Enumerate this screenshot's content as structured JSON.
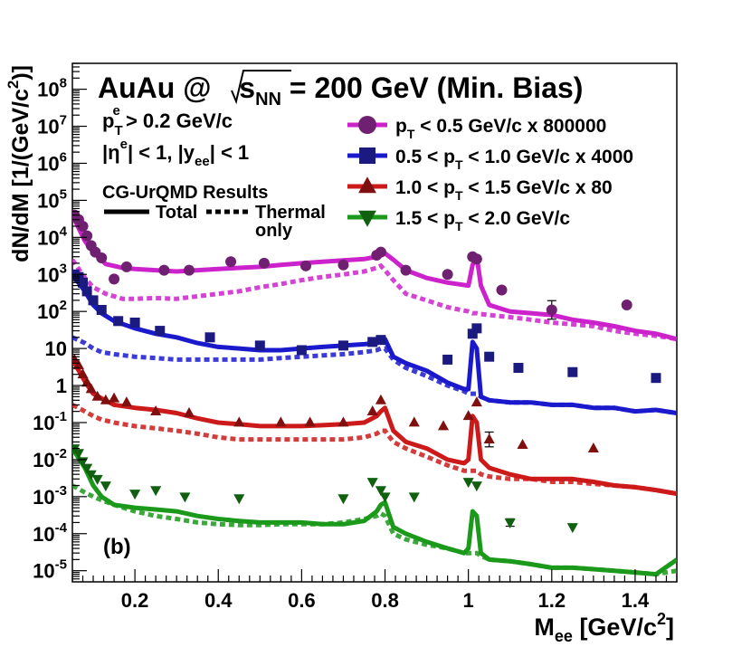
{
  "chart_data": {
    "type": "line",
    "title": "AuAu @ √s_NN = 200 GeV (Min. Bias)",
    "title_parts": {
      "lead": "AuAu @ ",
      "s": "s",
      "sub": "NN",
      "tail": " = 200 GeV (Min. Bias)"
    },
    "xlabel": "M_ee [GeV/c²]",
    "xlabel_parts": {
      "m": "M",
      "sub": "ee",
      "unit": " [GeV/c",
      "sup": "2",
      "close": "]"
    },
    "ylabel": "dN/dM [1/(GeV/c²)]",
    "ylabel_parts": {
      "main": "dN/dM [1/(GeV/c",
      "sup": "2",
      "close": ")]"
    },
    "xlim": [
      0.05,
      1.5
    ],
    "ylim": [
      5e-06,
      500000000.0
    ],
    "yscale": "log",
    "x_ticks": [
      0.2,
      0.4,
      0.6,
      0.8,
      1,
      1.2,
      1.4
    ],
    "x_tick_labels": [
      "0.2",
      "0.4",
      "0.6",
      "0.8",
      "1",
      "1.2",
      "1.4"
    ],
    "y_ticks": [
      {
        "exp": -5,
        "base": "10",
        "sup": "-5"
      },
      {
        "exp": -4,
        "base": "10",
        "sup": "-4"
      },
      {
        "exp": -3,
        "base": "10",
        "sup": "-3"
      },
      {
        "exp": -2,
        "base": "10",
        "sup": "-2"
      },
      {
        "exp": -1,
        "base": "10",
        "sup": "-1"
      },
      {
        "exp": 0,
        "text": "1"
      },
      {
        "exp": 1,
        "text": "10"
      },
      {
        "exp": 2,
        "base": "10",
        "sup": "2"
      },
      {
        "exp": 3,
        "base": "10",
        "sup": "3"
      },
      {
        "exp": 4,
        "base": "10",
        "sup": "4"
      },
      {
        "exp": 5,
        "base": "10",
        "sup": "5"
      },
      {
        "exp": 6,
        "base": "10",
        "sup": "6"
      },
      {
        "exp": 7,
        "base": "10",
        "sup": "7"
      },
      {
        "exp": 8,
        "base": "10",
        "sup": "8"
      }
    ],
    "annotations": {
      "cut_pt": {
        "main": "p",
        "sub": "T",
        "sup": "e",
        "tail": " > 0.2 GeV/c"
      },
      "cut_eta": {
        "a": "|η",
        "sup": "e",
        "b": "| < 1, |y",
        "sub": "ee",
        "c": "| < 1"
      },
      "model": "CG-UrQMD Results",
      "total_label": "Total",
      "thermal_label": "Thermal",
      "thermal_label2": "only",
      "panel": "(b)"
    },
    "series": [
      {
        "name": "p_T < 0.5 GeV/c  x 800000",
        "legend": {
          "pre": "",
          "p": "p",
          "sub": "T",
          "post": " < 0.5 GeV/c  x 800000"
        },
        "color": "#cc22cc",
        "data_color": "#702070",
        "marker": "circle",
        "x": [
          0.05,
          0.08,
          0.1,
          0.13,
          0.17,
          0.2,
          0.25,
          0.3,
          0.4,
          0.45,
          0.5,
          0.55,
          0.6,
          0.65,
          0.7,
          0.75,
          0.78,
          0.79,
          0.8,
          0.82,
          0.85,
          0.9,
          0.95,
          1.0,
          1.01,
          1.02,
          1.03,
          1.05,
          1.1,
          1.15,
          1.2,
          1.25,
          1.3,
          1.35,
          1.4,
          1.45,
          1.5
        ],
        "total": [
          40000,
          8000,
          4000,
          1900,
          1500,
          1400,
          1300,
          1200,
          1400,
          1500,
          1600,
          1800,
          2000,
          2200,
          2400,
          2600,
          3000,
          3500,
          3700,
          2500,
          1300,
          800,
          600,
          500,
          1800,
          3000,
          500,
          150,
          100,
          90,
          80,
          60,
          50,
          40,
          30,
          25,
          18
        ],
        "thermal": [
          2500,
          800,
          450,
          300,
          220,
          220,
          230,
          220,
          300,
          350,
          450,
          550,
          700,
          850,
          1000,
          1200,
          1500,
          1700,
          1300,
          700,
          300,
          200,
          130,
          100,
          90,
          90,
          85,
          80,
          70,
          60,
          50,
          45,
          40,
          30,
          25,
          22,
          18
        ],
        "points": [
          {
            "x": 0.055,
            "y": 40000
          },
          {
            "x": 0.065,
            "y": 30000
          },
          {
            "x": 0.075,
            "y": 20000
          },
          {
            "x": 0.085,
            "y": 11000
          },
          {
            "x": 0.095,
            "y": 6000
          },
          {
            "x": 0.105,
            "y": 4000
          },
          {
            "x": 0.12,
            "y": 2800
          },
          {
            "x": 0.15,
            "y": 750
          },
          {
            "x": 0.18,
            "y": 1600
          },
          {
            "x": 0.27,
            "y": 1300
          },
          {
            "x": 0.33,
            "y": 1300
          },
          {
            "x": 0.43,
            "y": 2200
          },
          {
            "x": 0.51,
            "y": 2000
          },
          {
            "x": 0.61,
            "y": 1700
          },
          {
            "x": 0.7,
            "y": 1800
          },
          {
            "x": 0.78,
            "y": 3300
          },
          {
            "x": 0.79,
            "y": 4000
          },
          {
            "x": 0.85,
            "y": 1300
          },
          {
            "x": 0.95,
            "y": 1000
          },
          {
            "x": 1.01,
            "y": 3000
          },
          {
            "x": 1.02,
            "y": 2600
          },
          {
            "x": 1.08,
            "y": 380
          },
          {
            "x": 1.2,
            "y": 110,
            "err": 0.25
          },
          {
            "x": 1.38,
            "y": 150
          }
        ]
      },
      {
        "name": "0.5 < p_T < 1.0 GeV/c  x 4000",
        "legend": {
          "pre": "0.5 < ",
          "p": "p",
          "sub": "T",
          "post": " < 1.0 GeV/c  x 4000"
        },
        "color": "#1a1acc",
        "data_color": "#1a1a80",
        "marker": "square",
        "x": [
          0.05,
          0.08,
          0.1,
          0.12,
          0.15,
          0.2,
          0.25,
          0.3,
          0.35,
          0.4,
          0.45,
          0.5,
          0.55,
          0.6,
          0.65,
          0.7,
          0.75,
          0.78,
          0.79,
          0.8,
          0.82,
          0.85,
          0.9,
          0.95,
          0.99,
          1.0,
          1.01,
          1.02,
          1.03,
          1.05,
          1.1,
          1.15,
          1.2,
          1.25,
          1.3,
          1.35,
          1.4,
          1.45,
          1.5
        ],
        "total": [
          1000,
          350,
          150,
          90,
          55,
          35,
          25,
          20,
          14,
          11,
          10,
          9,
          9,
          10,
          11,
          12,
          13,
          14,
          16,
          18,
          6,
          4,
          2.5,
          1.2,
          0.8,
          0.8,
          15,
          10,
          0.5,
          0.4,
          0.35,
          0.35,
          0.3,
          0.3,
          0.25,
          0.25,
          0.2,
          0.22,
          0.18
        ],
        "thermal": [
          20,
          14,
          10,
          8,
          7,
          6,
          5.5,
          5,
          5,
          5,
          5,
          5,
          5.5,
          6,
          6.5,
          7,
          8,
          9,
          10,
          10,
          5,
          3,
          1.8,
          1,
          0.7,
          0.6,
          0.6,
          0.6,
          0.5,
          0.4,
          0.35,
          0.35,
          0.3,
          0.3,
          0.25,
          0.25,
          0.2,
          0.22,
          0.18
        ],
        "points": [
          {
            "x": 0.055,
            "y": 1000
          },
          {
            "x": 0.065,
            "y": 850
          },
          {
            "x": 0.075,
            "y": 600
          },
          {
            "x": 0.085,
            "y": 350
          },
          {
            "x": 0.1,
            "y": 200
          },
          {
            "x": 0.12,
            "y": 110
          },
          {
            "x": 0.16,
            "y": 55
          },
          {
            "x": 0.2,
            "y": 50
          },
          {
            "x": 0.26,
            "y": 30
          },
          {
            "x": 0.38,
            "y": 20
          },
          {
            "x": 0.5,
            "y": 12
          },
          {
            "x": 0.6,
            "y": 9
          },
          {
            "x": 0.7,
            "y": 12
          },
          {
            "x": 0.77,
            "y": 15
          },
          {
            "x": 0.79,
            "y": 17
          },
          {
            "x": 0.95,
            "y": 5
          },
          {
            "x": 1.01,
            "y": 25
          },
          {
            "x": 1.02,
            "y": 35
          },
          {
            "x": 1.05,
            "y": 6
          },
          {
            "x": 1.12,
            "y": 3
          },
          {
            "x": 1.25,
            "y": 2.3
          },
          {
            "x": 1.45,
            "y": 1.6
          }
        ]
      },
      {
        "name": "1.0 < p_T < 1.5 GeV/c  x 80",
        "legend": {
          "pre": "1.0 < ",
          "p": "p",
          "sub": "T",
          "post": " < 1.5 GeV/c  x 80"
        },
        "color": "#cc1a1a",
        "data_color": "#801010",
        "marker": "triangle-up",
        "x": [
          0.05,
          0.08,
          0.1,
          0.12,
          0.15,
          0.2,
          0.25,
          0.3,
          0.35,
          0.4,
          0.45,
          0.5,
          0.55,
          0.6,
          0.65,
          0.7,
          0.75,
          0.78,
          0.79,
          0.8,
          0.82,
          0.85,
          0.9,
          0.95,
          0.99,
          1.0,
          1.01,
          1.02,
          1.03,
          1.05,
          1.1,
          1.15,
          1.2,
          1.25,
          1.3,
          1.35,
          1.4,
          1.45,
          1.5
        ],
        "total": [
          5,
          1.3,
          0.6,
          0.45,
          0.3,
          0.25,
          0.22,
          0.18,
          0.13,
          0.1,
          0.09,
          0.08,
          0.08,
          0.08,
          0.085,
          0.09,
          0.1,
          0.15,
          0.2,
          0.25,
          0.06,
          0.03,
          0.02,
          0.01,
          0.008,
          0.01,
          0.15,
          0.1,
          0.01,
          0.006,
          0.004,
          0.003,
          0.003,
          0.003,
          0.0025,
          0.002,
          0.0018,
          0.0015,
          0.0012
        ],
        "thermal": [
          0.3,
          0.2,
          0.15,
          0.12,
          0.1,
          0.08,
          0.07,
          0.06,
          0.05,
          0.04,
          0.035,
          0.035,
          0.035,
          0.035,
          0.035,
          0.035,
          0.04,
          0.05,
          0.06,
          0.06,
          0.03,
          0.02,
          0.012,
          0.007,
          0.005,
          0.005,
          0.005,
          0.005,
          0.004,
          0.0035,
          0.003,
          0.003,
          0.0025,
          0.0025,
          0.0022,
          0.002,
          0.0018,
          0.0015,
          0.0012
        ],
        "points": [
          {
            "x": 0.055,
            "y": 5
          },
          {
            "x": 0.065,
            "y": 3.5
          },
          {
            "x": 0.075,
            "y": 2
          },
          {
            "x": 0.085,
            "y": 1.2
          },
          {
            "x": 0.095,
            "y": 0.8
          },
          {
            "x": 0.11,
            "y": 0.5
          },
          {
            "x": 0.13,
            "y": 0.4
          },
          {
            "x": 0.15,
            "y": 0.45
          },
          {
            "x": 0.18,
            "y": 0.35
          },
          {
            "x": 0.25,
            "y": 0.2
          },
          {
            "x": 0.33,
            "y": 0.18
          },
          {
            "x": 0.45,
            "y": 0.1
          },
          {
            "x": 0.55,
            "y": 0.1
          },
          {
            "x": 0.62,
            "y": 0.1
          },
          {
            "x": 0.7,
            "y": 0.1
          },
          {
            "x": 0.77,
            "y": 0.2
          },
          {
            "x": 0.79,
            "y": 0.4
          },
          {
            "x": 0.87,
            "y": 0.1
          },
          {
            "x": 0.94,
            "y": 0.08
          },
          {
            "x": 1.0,
            "y": 0.15
          },
          {
            "x": 1.02,
            "y": 0.35
          },
          {
            "x": 1.05,
            "y": 0.035,
            "err": 0.2
          },
          {
            "x": 1.13,
            "y": 0.025
          },
          {
            "x": 1.3,
            "y": 0.02
          }
        ]
      },
      {
        "name": "1.5 < p_T < 2.0 GeV/c",
        "legend": {
          "pre": "1.5 < ",
          "p": "p",
          "sub": "T",
          "post": " < 2.0 GeV/c"
        },
        "color": "#1a991a",
        "data_color": "#106010",
        "marker": "triangle-down",
        "x": [
          0.05,
          0.08,
          0.1,
          0.12,
          0.15,
          0.2,
          0.25,
          0.3,
          0.35,
          0.4,
          0.45,
          0.5,
          0.55,
          0.6,
          0.65,
          0.7,
          0.75,
          0.78,
          0.79,
          0.8,
          0.82,
          0.85,
          0.9,
          0.95,
          0.99,
          1.0,
          1.01,
          1.02,
          1.03,
          1.05,
          1.1,
          1.15,
          1.2,
          1.25,
          1.3,
          1.35,
          1.4,
          1.45,
          1.5
        ],
        "total": [
          0.02,
          0.006,
          0.002,
          0.001,
          0.0006,
          0.0005,
          0.00045,
          0.0004,
          0.0003,
          0.00025,
          0.00022,
          0.0002,
          0.0002,
          0.0002,
          0.00018,
          0.00018,
          0.00022,
          0.0004,
          0.0006,
          0.0007,
          0.00015,
          0.0001,
          6e-05,
          4e-05,
          3e-05,
          4e-05,
          0.0004,
          0.0003,
          3e-05,
          2e-05,
          1.8e-05,
          1.5e-05,
          1.2e-05,
          1.2e-05,
          1.1e-05,
          1e-05,
          9e-06,
          8e-06,
          2e-05
        ],
        "thermal": [
          0.002,
          0.0013,
          0.001,
          0.0008,
          0.0006,
          0.0004,
          0.0003,
          0.00025,
          0.0002,
          0.00018,
          0.00017,
          0.00017,
          0.00018,
          0.00018,
          0.00018,
          0.0002,
          0.00025,
          0.0003,
          0.00035,
          0.0003,
          0.0001,
          7e-05,
          5e-05,
          4e-05,
          3e-05,
          3e-05,
          3e-05,
          3e-05,
          2.5e-05,
          2e-05,
          1.8e-05,
          1.5e-05,
          1.2e-05,
          1.2e-05,
          1.1e-05,
          1e-05,
          9e-06,
          8e-06,
          1e-05
        ],
        "points": [
          {
            "x": 0.055,
            "y": 0.02
          },
          {
            "x": 0.065,
            "y": 0.015
          },
          {
            "x": 0.075,
            "y": 0.009
          },
          {
            "x": 0.085,
            "y": 0.006
          },
          {
            "x": 0.095,
            "y": 0.004
          },
          {
            "x": 0.11,
            "y": 0.003
          },
          {
            "x": 0.13,
            "y": 0.002
          },
          {
            "x": 0.2,
            "y": 0.0012
          },
          {
            "x": 0.25,
            "y": 0.0015
          },
          {
            "x": 0.32,
            "y": 0.001
          },
          {
            "x": 0.45,
            "y": 0.0009
          },
          {
            "x": 0.7,
            "y": 0.0009
          },
          {
            "x": 0.77,
            "y": 0.0025
          },
          {
            "x": 0.79,
            "y": 0.0015
          },
          {
            "x": 0.8,
            "y": 0.001
          },
          {
            "x": 0.87,
            "y": 0.001
          },
          {
            "x": 1.0,
            "y": 0.0025
          },
          {
            "x": 1.02,
            "y": 0.002
          },
          {
            "x": 1.1,
            "y": 0.0002,
            "err": 0.1
          },
          {
            "x": 1.25,
            "y": 0.00015
          }
        ]
      }
    ]
  }
}
